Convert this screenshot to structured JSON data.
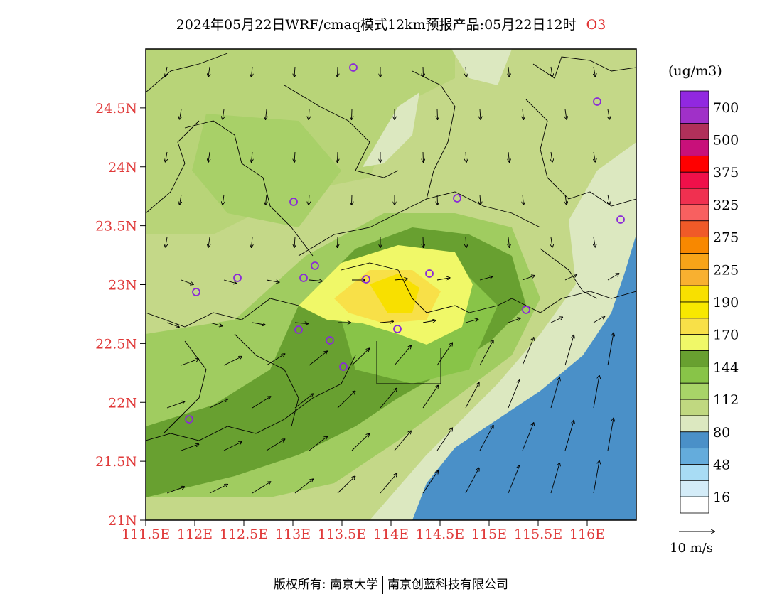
{
  "title": {
    "text": "2024年05月22日WRF/cmaq模式12km预报产品:05月22日12时",
    "pollutant": "O3"
  },
  "axes": {
    "lat_labels": [
      "24.5N",
      "24N",
      "23.5N",
      "23N",
      "22.5N",
      "22N",
      "21.5N",
      "21N"
    ],
    "lon_labels": [
      "111.5E",
      "112E",
      "112.5E",
      "113E",
      "113.5E",
      "114E",
      "114.5E",
      "115E",
      "115.5E",
      "116E"
    ],
    "lat_range": [
      21.0,
      25.0
    ],
    "lon_range": [
      111.5,
      116.5
    ]
  },
  "legend": {
    "unit": "(ug/m3)",
    "bins": [
      {
        "color": "#9128e0",
        "label": "700"
      },
      {
        "color": "#a030c8",
        "label": ""
      },
      {
        "color": "#b0305a",
        "label": "500"
      },
      {
        "color": "#c8107a",
        "label": ""
      },
      {
        "color": "#ff0000",
        "label": "375"
      },
      {
        "color": "#f0104a",
        "label": ""
      },
      {
        "color": "#f03050",
        "label": "325"
      },
      {
        "color": "#f86060",
        "label": ""
      },
      {
        "color": "#f05a28",
        "label": "275"
      },
      {
        "color": "#f88800",
        "label": ""
      },
      {
        "color": "#f8a418",
        "label": "225"
      },
      {
        "color": "#f8b030",
        "label": ""
      },
      {
        "color": "#f8e000",
        "label": "190"
      },
      {
        "color": "#f8e800",
        "label": ""
      },
      {
        "color": "#f8e048",
        "label": "170"
      },
      {
        "color": "#f0f868",
        "label": ""
      },
      {
        "color": "#68a030",
        "label": "144"
      },
      {
        "color": "#88c448",
        "label": ""
      },
      {
        "color": "#a8d468",
        "label": "112"
      },
      {
        "color": "#c0d880",
        "label": ""
      },
      {
        "color": "#dce8c0",
        "label": "80"
      },
      {
        "color": "#4a90c8",
        "label": ""
      },
      {
        "color": "#64acdc",
        "label": "48"
      },
      {
        "color": "#a8dcf4",
        "label": ""
      },
      {
        "color": "#d4ecf8",
        "label": "16"
      },
      {
        "color": "#ffffff",
        "label": ""
      }
    ]
  },
  "wind_reference": {
    "label": "10  m/s",
    "speed_ms": 10
  },
  "stations_icon": "circle-station-icon",
  "footer": {
    "left": "版权所有: 南京大学",
    "right": "南京创蓝科技有限公司"
  }
}
